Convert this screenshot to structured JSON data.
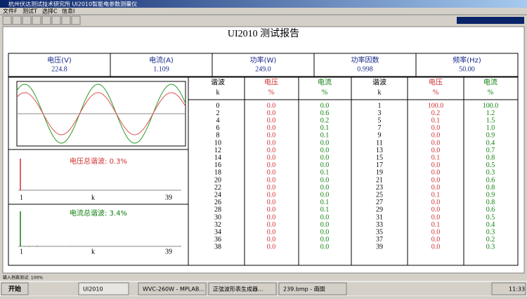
{
  "window": {
    "title": "杭州伏达测试技术研究所  UI2010智能电参数测量仪",
    "menu": [
      "文件F",
      "测试T",
      "选择C",
      "信息I"
    ]
  },
  "report": {
    "title": "UI2010 测试报告",
    "measurements": [
      {
        "label": "电压(V)",
        "value": "224.8"
      },
      {
        "label": "电流(A)",
        "value": "1.109"
      },
      {
        "label": "功率(W)",
        "value": "249.0"
      },
      {
        "label": "功率因数",
        "value": "0.998"
      },
      {
        "label": "频率(Hz)",
        "value": "50.00"
      }
    ],
    "voltage_thd": "电压总谐波: 0.3%",
    "current_thd": "电流总谐波: 3.4%",
    "axis": {
      "start": "1",
      "mid": "k",
      "end": "39"
    },
    "table": {
      "headers": [
        [
          "谐波",
          "k"
        ],
        [
          "电压",
          "%"
        ],
        [
          "电流",
          "%"
        ]
      ],
      "rows": [
        [
          "0",
          "0.0",
          "0.0",
          "1",
          "100.0",
          "100.0"
        ],
        [
          "2",
          "0.0",
          "0.6",
          "3",
          "0.2",
          "1.2"
        ],
        [
          "4",
          "0.0",
          "0.2",
          "5",
          "0.1",
          "1.5"
        ],
        [
          "6",
          "0.0",
          "0.1",
          "7",
          "0.0",
          "1.0"
        ],
        [
          "8",
          "0.0",
          "0.1",
          "9",
          "0.0",
          "0.9"
        ],
        [
          "10",
          "0.0",
          "0.0",
          "11",
          "0.0",
          "0.4"
        ],
        [
          "12",
          "0.0",
          "0.0",
          "13",
          "0.0",
          "0.7"
        ],
        [
          "14",
          "0.0",
          "0.0",
          "15",
          "0.1",
          "0.8"
        ],
        [
          "16",
          "0.0",
          "0.0",
          "17",
          "0.0",
          "0.5"
        ],
        [
          "18",
          "0.0",
          "0.1",
          "19",
          "0.0",
          "0.3"
        ],
        [
          "20",
          "0.0",
          "0.0",
          "21",
          "0.0",
          "0.6"
        ],
        [
          "22",
          "0.0",
          "0.0",
          "23",
          "0.0",
          "0.8"
        ],
        [
          "24",
          "0.0",
          "0.0",
          "25",
          "0.1",
          "0.9"
        ],
        [
          "26",
          "0.0",
          "0.1",
          "27",
          "0.0",
          "0.8"
        ],
        [
          "28",
          "0.0",
          "0.1",
          "29",
          "0.0",
          "0.6"
        ],
        [
          "30",
          "0.0",
          "0.0",
          "31",
          "0.0",
          "0.5"
        ],
        [
          "32",
          "0.0",
          "0.0",
          "33",
          "0.1",
          "0.4"
        ],
        [
          "34",
          "0.0",
          "0.0",
          "35",
          "0.0",
          "0.3"
        ],
        [
          "36",
          "0.0",
          "0.0",
          "37",
          "0.0",
          "0.2"
        ],
        [
          "38",
          "0.0",
          "0.0",
          "39",
          "0.0",
          "0.3"
        ]
      ]
    }
  },
  "status": "输入挡衰测试: 100%",
  "taskbar": {
    "start": "开始",
    "items": [
      "UI2010",
      "WVC-260W - MPLAB...",
      "正弦波形表生成器...",
      "239.bmp - 画图"
    ],
    "clock": "11:33"
  }
}
